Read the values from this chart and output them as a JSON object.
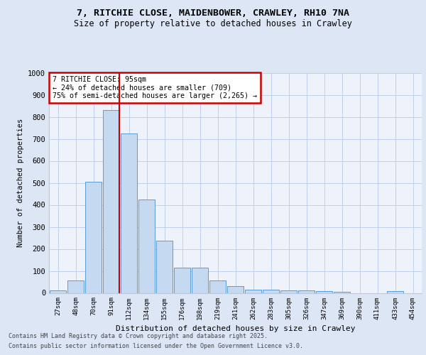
{
  "title_line1": "7, RITCHIE CLOSE, MAIDENBOWER, CRAWLEY, RH10 7NA",
  "title_line2": "Size of property relative to detached houses in Crawley",
  "xlabel": "Distribution of detached houses by size in Crawley",
  "ylabel": "Number of detached properties",
  "bar_labels": [
    "27sqm",
    "48sqm",
    "70sqm",
    "91sqm",
    "112sqm",
    "134sqm",
    "155sqm",
    "176sqm",
    "198sqm",
    "219sqm",
    "241sqm",
    "262sqm",
    "283sqm",
    "305sqm",
    "326sqm",
    "347sqm",
    "369sqm",
    "390sqm",
    "411sqm",
    "433sqm",
    "454sqm"
  ],
  "bar_values": [
    10,
    57,
    505,
    830,
    725,
    425,
    238,
    115,
    115,
    55,
    30,
    13,
    13,
    12,
    12,
    8,
    5,
    0,
    0,
    8,
    0
  ],
  "bar_color": "#c5d9f0",
  "bar_edge_color": "#5b9bd5",
  "vline_x_index": 3,
  "vline_color": "#cc0000",
  "annotation_title": "7 RITCHIE CLOSE: 95sqm",
  "annotation_line1": "← 24% of detached houses are smaller (709)",
  "annotation_line2": "75% of semi-detached houses are larger (2,265) →",
  "annotation_box_color": "#cc0000",
  "ylim": [
    0,
    1000
  ],
  "yticks": [
    0,
    100,
    200,
    300,
    400,
    500,
    600,
    700,
    800,
    900,
    1000
  ],
  "footer_line1": "Contains HM Land Registry data © Crown copyright and database right 2025.",
  "footer_line2": "Contains public sector information licensed under the Open Government Licence v3.0.",
  "bg_color": "#dce6f5",
  "plot_bg_color": "#eef3fb"
}
